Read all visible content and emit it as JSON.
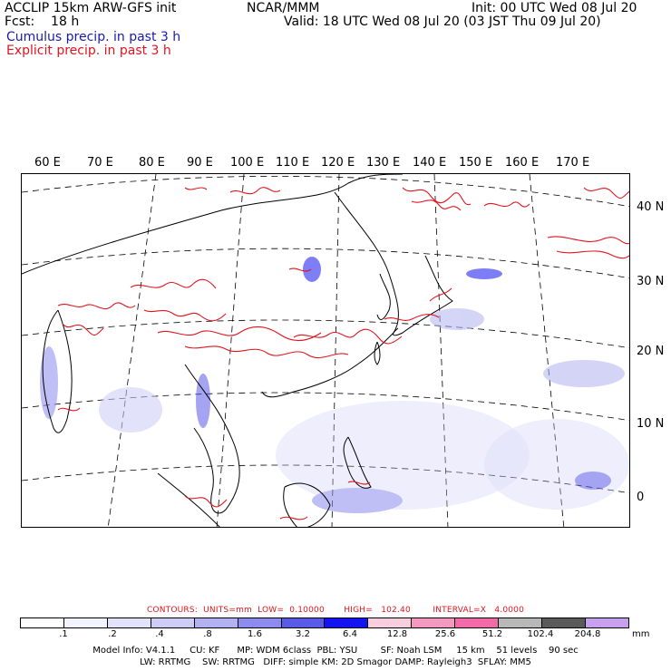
{
  "header": {
    "line1_left": "ACCLIP 15km ARW-GFS init",
    "line1_center": "NCAR/MMM",
    "line1_right": "Init: 00 UTC Wed 08 Jul 20",
    "line2_left": "Fcst:    18 h",
    "line2_right": "Valid: 18 UTC Wed 08 Jul 20 (03 JST Thu 09 Jul 20)",
    "line3_blue": "Cumulus precip. in past 3 h",
    "line4_red": "Explicit precip. in past 3 h"
  },
  "map": {
    "longitude_labels": [
      "60 E",
      "70 E",
      "80 E",
      "90 E",
      "100 E",
      "110 E",
      "120 E",
      "130 E",
      "140 E",
      "150 E",
      "160 E",
      "170 E"
    ],
    "latitude_labels": [
      "40 N",
      "30 N",
      "20 N",
      "10 N",
      "0"
    ],
    "colors": {
      "coastline": "#000000",
      "grid": "#000000",
      "explicit_precip": "#e0141e",
      "cumulus_precip": "#2a2ae6"
    }
  },
  "legend": {
    "contours_line": "CONTOURS:  UNITS=mm  LOW=  0.10000       HIGH=   102.40        INTERVAL=X   4.0000",
    "tick_labels": [
      ".1",
      ".2",
      ".4",
      ".8",
      "1.6",
      "3.2",
      "6.4",
      "12.8",
      "25.6",
      "51.2",
      "102.4",
      "204.8"
    ],
    "units": "mm",
    "colors": [
      "#ffffff",
      "#f3f3ff",
      "#e2e2fa",
      "#ccccf6",
      "#b2b2f2",
      "#8c8cee",
      "#5a5ae8",
      "#1414f0",
      "#f8cede",
      "#f49ac0",
      "#f26aa8",
      "#b8b8b8",
      "#5a5a5a",
      "#c8a0f0"
    ]
  },
  "model_info": {
    "line1": "Model Info: V4.1.1     CU: KF      MP: WDM 6class  PBL: YSU        SF: Noah LSM     15 km    51 levels    90 sec",
    "line2": "LW: RRTMG    SW: RRTMG   DIFF: simple KM: 2D Smagor DAMP: Rayleigh3  SFLAY: MM5"
  }
}
